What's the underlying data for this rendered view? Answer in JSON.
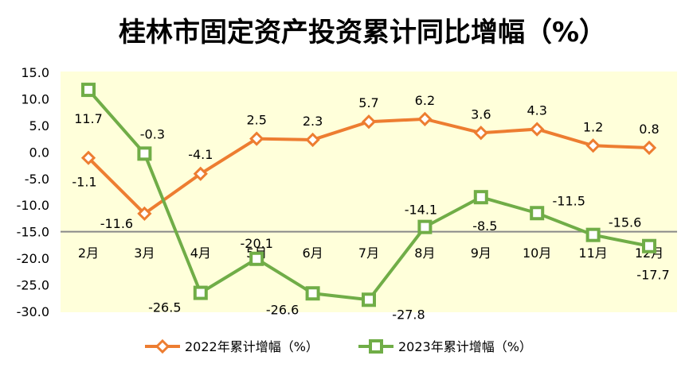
{
  "chart_data": {
    "type": "line",
    "title": "桂林市固定资产投资累计同比增幅（%）",
    "categories": [
      "2月",
      "3月",
      "4月",
      "5月",
      "6月",
      "7月",
      "8月",
      "9月",
      "10月",
      "11月",
      "12月"
    ],
    "series": [
      {
        "name": "2022年累计增幅（%）",
        "color": "#ED7D31",
        "marker": "diamond",
        "values": [
          -1.1,
          -11.6,
          -4.1,
          2.5,
          2.3,
          5.7,
          6.2,
          3.6,
          4.3,
          1.2,
          0.8
        ]
      },
      {
        "name": "2023年累计增幅（%）",
        "color": "#70AD47",
        "marker": "square",
        "values": [
          11.7,
          -0.3,
          -26.5,
          -20.1,
          -26.6,
          -27.8,
          -14.1,
          -8.5,
          -11.5,
          -15.6,
          -17.7
        ]
      }
    ],
    "ylim": [
      -30,
      15
    ],
    "yticks": [
      "15.0",
      "10.0",
      "5.0",
      "0.0",
      "-5.0",
      "-10.0",
      "-15.0",
      "-20.0",
      "-25.0",
      "-30.0"
    ],
    "x_axis_crosses_at": -15,
    "legend": "bottom",
    "plot_background": "#FFFFDA"
  }
}
